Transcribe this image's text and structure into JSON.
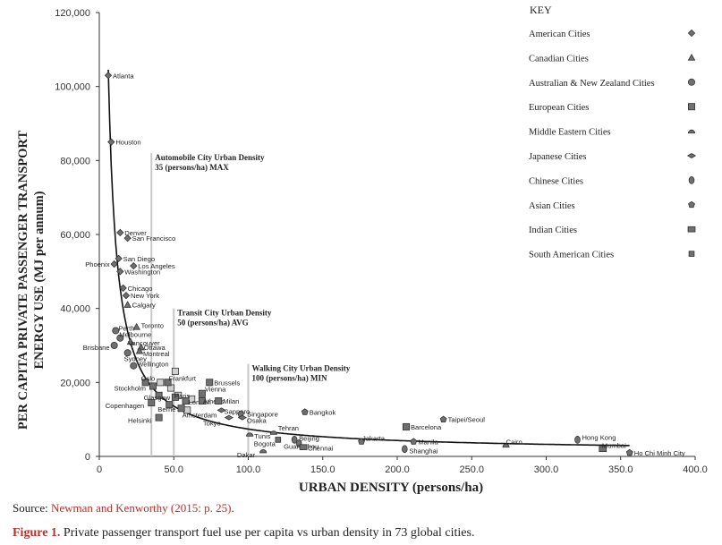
{
  "chart_data": {
    "type": "scatter",
    "title": "",
    "xlabel": "URBAN DENSITY (persons/ha)",
    "ylabel_lines": [
      "PER CAPITA PRIVATE PASSENGER TRANSPORT",
      "ENERGY USE (MJ per annum)"
    ],
    "xlim": [
      0,
      400
    ],
    "ylim": [
      0,
      120000
    ],
    "xticks": [
      "0",
      "50.0",
      "100.0",
      "150.0",
      "200.0",
      "250.0",
      "300.0",
      "350.0",
      "400.0"
    ],
    "xtick_values": [
      0,
      50,
      100,
      150,
      200,
      250,
      300,
      350,
      400
    ],
    "yticks": [
      "0",
      "20,000",
      "40,000",
      "60,000",
      "80,000",
      "100,000",
      "120,000"
    ],
    "ytick_values": [
      0,
      20000,
      40000,
      60000,
      80000,
      100000,
      120000
    ],
    "grid": false,
    "legend": {
      "title": "KEY",
      "position": "right",
      "entries": [
        {
          "name": "American Cities",
          "marker": "diamond"
        },
        {
          "name": "Canadian Cities",
          "marker": "triangle"
        },
        {
          "name": "Australian & New Zealand Cities",
          "marker": "circle"
        },
        {
          "name": "European Cities",
          "marker": "square"
        },
        {
          "name": "Middle Eastern Cities",
          "marker": "half-disc"
        },
        {
          "name": "Japanese Cities",
          "marker": "flat-diamond"
        },
        {
          "name": "Chinese Cities",
          "marker": "oval"
        },
        {
          "name": "Asian Cities",
          "marker": "pentagon"
        },
        {
          "name": "Indian Cities",
          "marker": "rectangle"
        },
        {
          "name": "South American Cities",
          "marker": "small-square"
        }
      ]
    },
    "reference_lines": [
      {
        "x": 35,
        "lines": [
          "Automobile City Urban Density",
          "35 (persons/ha) MAX"
        ]
      },
      {
        "x": 50,
        "lines": [
          "Transit City Urban Density",
          "50 (persons/ha) AVG"
        ]
      },
      {
        "x": 100,
        "lines": [
          "Walking City Urban Density",
          "100 (persons/ha) MIN"
        ]
      }
    ],
    "trend_line": {
      "type": "power",
      "description": "fitted curve through city points"
    },
    "points": [
      {
        "label": "Atlanta",
        "group": "American Cities",
        "x": 6,
        "y": 103000
      },
      {
        "label": "Houston",
        "group": "American Cities",
        "x": 8,
        "y": 85000
      },
      {
        "label": "Denver",
        "group": "American Cities",
        "x": 14,
        "y": 60500
      },
      {
        "label": "San Francisco",
        "group": "American Cities",
        "x": 19,
        "y": 59000
      },
      {
        "label": "San Diego",
        "group": "American Cities",
        "x": 13,
        "y": 53500
      },
      {
        "label": "Phoenix",
        "group": "American Cities",
        "x": 10,
        "y": 52000
      },
      {
        "label": "Los Angeles",
        "group": "American Cities",
        "x": 23,
        "y": 51500
      },
      {
        "label": "Washington",
        "group": "American Cities",
        "x": 14,
        "y": 50000
      },
      {
        "label": "Chicago",
        "group": "American Cities",
        "x": 16,
        "y": 45500
      },
      {
        "label": "New York",
        "group": "American Cities",
        "x": 18,
        "y": 43500
      },
      {
        "label": "Calgary",
        "group": "Canadian Cities",
        "x": 19,
        "y": 41000
      },
      {
        "label": "Toronto",
        "group": "Canadian Cities",
        "x": 25,
        "y": 35000
      },
      {
        "label": "Perth",
        "group": "Australian & New Zealand Cities",
        "x": 11,
        "y": 34000
      },
      {
        "label": "Melbourne",
        "group": "Australian & New Zealand Cities",
        "x": 14,
        "y": 32000
      },
      {
        "label": "Vancouver",
        "group": "Canadian Cities",
        "x": 21,
        "y": 31000
      },
      {
        "label": "Brisbane",
        "group": "Australian & New Zealand Cities",
        "x": 10,
        "y": 30000
      },
      {
        "label": "Ottawa",
        "group": "Canadian Cities",
        "x": 28,
        "y": 29500
      },
      {
        "label": "Montreal",
        "group": "Canadian Cities",
        "x": 27,
        "y": 28500
      },
      {
        "label": "Sydney",
        "group": "Australian & New Zealand Cities",
        "x": 19,
        "y": 28000
      },
      {
        "label": "Wellington",
        "group": "Australian & New Zealand Cities",
        "x": 23,
        "y": 24500
      },
      {
        "label": "Oslo",
        "group": "European Cities",
        "x": 31,
        "y": 20000
      },
      {
        "label": "Frankfurt",
        "group": "European Cities",
        "x": 46,
        "y": 20000
      },
      {
        "label": "Brussels",
        "group": "European Cities",
        "x": 74,
        "y": 20000
      },
      {
        "label": "Stockholm",
        "group": "European Cities",
        "x": 36,
        "y": 19000
      },
      {
        "label": "Vienna",
        "group": "European Cities",
        "x": 69,
        "y": 17000
      },
      {
        "label": "Glasgow",
        "group": "European Cities",
        "x": 40,
        "y": 16500
      },
      {
        "label": "Paris",
        "group": "European Cities",
        "x": 51,
        "y": 16000
      },
      {
        "label": "London",
        "group": "European Cities",
        "x": 58,
        "y": 15000
      },
      {
        "label": "Athens",
        "group": "European Cities",
        "x": 69,
        "y": 15000
      },
      {
        "label": "Milan",
        "group": "European Cities",
        "x": 80,
        "y": 15000
      },
      {
        "label": "Copenhagen",
        "group": "European Cities",
        "x": 35,
        "y": 14500
      },
      {
        "label": "Berne",
        "group": "European Cities",
        "x": 47,
        "y": 14000
      },
      {
        "label": "Amsterdam",
        "group": "European Cities",
        "x": 55,
        "y": 13000
      },
      {
        "label": "Sapporo",
        "group": "Japanese Cities",
        "x": 82,
        "y": 12500
      },
      {
        "label": "Singapore",
        "group": "Asian Cities",
        "x": 95,
        "y": 11500
      },
      {
        "label": "Helsinki",
        "group": "European Cities",
        "x": 40,
        "y": 10500
      },
      {
        "label": "Tokyo",
        "group": "Japanese Cities",
        "x": 87,
        "y": 10500
      },
      {
        "label": "Osaka",
        "group": "Japanese Cities",
        "x": 96,
        "y": 10500
      },
      {
        "label": "Bangkok",
        "group": "Asian Cities",
        "x": 138,
        "y": 12000
      },
      {
        "label": "Taipei/Seoul",
        "group": "Asian Cities",
        "x": 231,
        "y": 10000
      },
      {
        "label": "Barcelona",
        "group": "European Cities",
        "x": 206,
        "y": 8000
      },
      {
        "label": "Tehran",
        "group": "Middle Eastern Cities",
        "x": 117,
        "y": 6500
      },
      {
        "label": "Tunis",
        "group": "Middle Eastern Cities",
        "x": 101,
        "y": 6000
      },
      {
        "label": "Bogota",
        "group": "South American Cities",
        "x": 120,
        "y": 4500
      },
      {
        "label": "Beijing",
        "group": "Chinese Cities",
        "x": 131,
        "y": 4500
      },
      {
        "label": "Guangzhou",
        "group": "Chinese Cities",
        "x": 134,
        "y": 3500
      },
      {
        "label": "Chennai",
        "group": "Indian Cities",
        "x": 137,
        "y": 2500
      },
      {
        "label": "Dakar",
        "group": "Middle Eastern Cities",
        "x": 110,
        "y": 1500
      },
      {
        "label": "Jakarta",
        "group": "Asian Cities",
        "x": 176,
        "y": 4000
      },
      {
        "label": "Manila",
        "group": "Asian Cities",
        "x": 211,
        "y": 4000
      },
      {
        "label": "Shanghai",
        "group": "Chinese Cities",
        "x": 205,
        "y": 2000
      },
      {
        "label": "Cairo",
        "group": "Middle Eastern Cities",
        "x": 273,
        "y": 3000
      },
      {
        "label": "Hong Kong",
        "group": "Chinese Cities",
        "x": 321,
        "y": 4500
      },
      {
        "label": "Mumbai",
        "group": "Indian Cities",
        "x": 338,
        "y": 2000
      },
      {
        "label": "Ho Chi Minh City",
        "group": "Asian Cities",
        "x": 356,
        "y": 1000
      }
    ],
    "unlabelled_points": [
      {
        "group": "European Cities",
        "x": 41,
        "y": 20000
      },
      {
        "group": "European Cities",
        "x": 48,
        "y": 18500
      },
      {
        "group": "European Cities",
        "x": 53,
        "y": 16500
      },
      {
        "group": "European Cities",
        "x": 62,
        "y": 15500
      },
      {
        "group": "European Cities",
        "x": 59,
        "y": 12500
      },
      {
        "group": "European Cities",
        "x": 51,
        "y": 23000
      }
    ]
  },
  "source": {
    "prefix": "Source: ",
    "citation": "Newman and Kenworthy (2015: p. 25)",
    "suffix": "."
  },
  "figure": {
    "label": "Figure 1.",
    "caption": " Private passenger transport fuel use per capita vs urban density in 73 global cities."
  },
  "colors": {
    "marker": "#707070",
    "curve": "#111111",
    "refline": "#c8c8c8",
    "accent": "#b5312b"
  }
}
